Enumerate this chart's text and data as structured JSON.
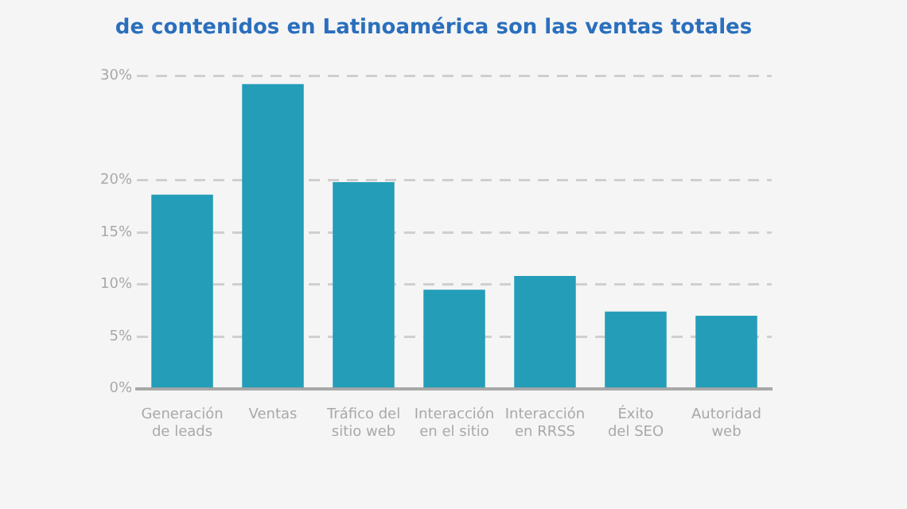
{
  "chart_data": {
    "type": "bar",
    "title": "de contenidos en Latinoamérica son las ventas totales",
    "categories": [
      "Generación\nde leads",
      "Ventas",
      "Tráfico del\nsitio web",
      "Interacción\nen el sitio",
      "Interacción\nen RRSS",
      "Éxito\ndel SEO",
      "Autoridad\nweb"
    ],
    "values": [
      18.6,
      29.2,
      19.8,
      9.5,
      10.8,
      7.4,
      7.0
    ],
    "color": "#249db8",
    "ylim": [
      0,
      30
    ],
    "yticks": [
      {
        "value": 0,
        "label": "0%"
      },
      {
        "value": 5,
        "label": "5%"
      },
      {
        "value": 10,
        "label": "10%"
      },
      {
        "value": 15,
        "label": "15%"
      },
      {
        "value": 20,
        "label": "20%"
      },
      {
        "value": 30,
        "label": "30%"
      }
    ],
    "grid": "y"
  }
}
